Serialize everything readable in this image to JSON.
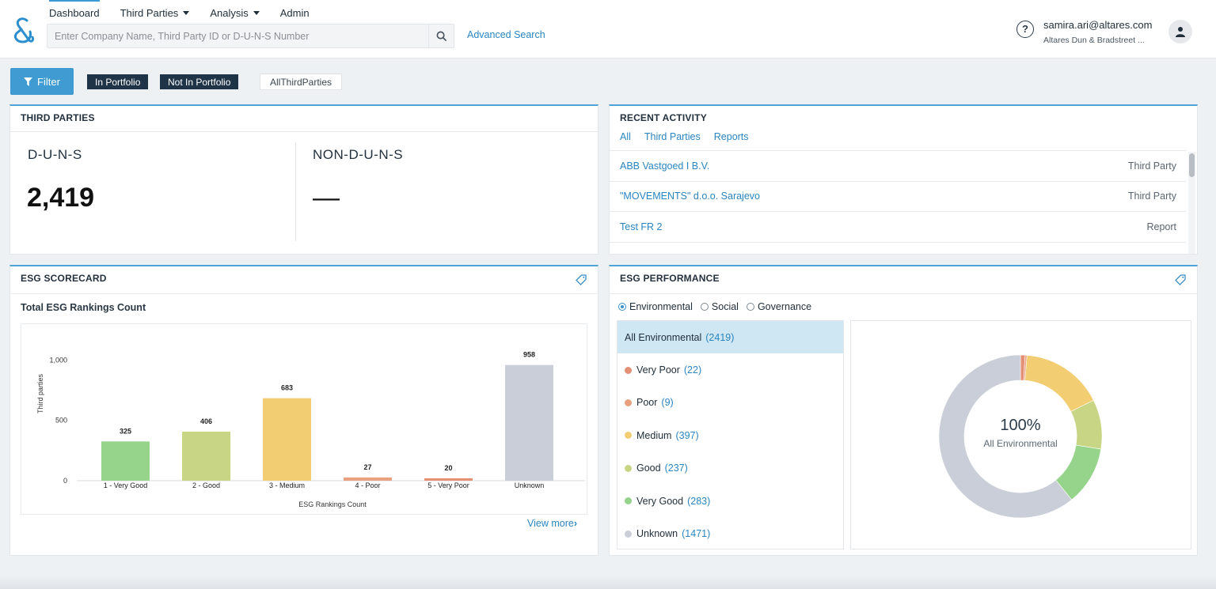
{
  "header": {
    "nav": [
      {
        "label": "Dashboard",
        "active": true,
        "dropdown": false
      },
      {
        "label": "Third Parties",
        "active": false,
        "dropdown": true
      },
      {
        "label": "Analysis",
        "active": false,
        "dropdown": true
      },
      {
        "label": "Admin",
        "active": false,
        "dropdown": false
      }
    ],
    "search_placeholder": "Enter Company Name, Third Party ID or D-U-N-S Number",
    "search_value": "",
    "advanced_search": "Advanced Search",
    "user_email": "samira.ari@altares.com",
    "user_org": "Altares Dun & Bradstreet ..."
  },
  "filters": {
    "filter_label": "Filter",
    "chips": [
      "In Portfolio",
      "Not In Portfolio",
      "AllThirdParties"
    ]
  },
  "third_parties": {
    "title": "THIRD PARTIES",
    "duns_label": "D-U-N-S",
    "duns_value": "2,419",
    "non_duns_label": "NON-D-U-N-S",
    "non_duns_value": "—"
  },
  "recent_activity": {
    "title": "RECENT ACTIVITY",
    "tabs": [
      "All",
      "Third Parties",
      "Reports"
    ],
    "rows": [
      {
        "name": "ABB Vastgoed I B.V.",
        "type": "Third Party"
      },
      {
        "name": "\"MOVEMENTS\" d.o.o. Sarajevo",
        "type": "Third Party"
      },
      {
        "name": "Test FR 2",
        "type": "Report"
      }
    ]
  },
  "esg_scorecard": {
    "title": "ESG SCORECARD",
    "subtitle": "Total ESG Rankings Count",
    "view_more": "View more"
  },
  "esg_performance": {
    "title": "ESG PERFORMANCE",
    "radios": [
      {
        "label": "Environmental",
        "checked": true
      },
      {
        "label": "Social",
        "checked": false
      },
      {
        "label": "Governance",
        "checked": false
      }
    ],
    "categories": [
      {
        "label": "All Environmental",
        "count": "(2419)",
        "color": "",
        "selected": true
      },
      {
        "label": "Very Poor",
        "count": "(22)",
        "color": "#e58f75",
        "selected": false
      },
      {
        "label": "Poor",
        "count": "(9)",
        "color": "#e8a07f",
        "selected": false
      },
      {
        "label": "Medium",
        "count": "(397)",
        "color": "#f2cd72",
        "selected": false
      },
      {
        "label": "Good",
        "count": "(237)",
        "color": "#c8d584",
        "selected": false
      },
      {
        "label": "Very Good",
        "count": "(283)",
        "color": "#95d48a",
        "selected": false
      },
      {
        "label": "Unknown",
        "count": "(1471)",
        "color": "#c9ced8",
        "selected": false
      }
    ],
    "donut_center_value": "100%",
    "donut_center_label": "All Environmental"
  },
  "chart_data": [
    {
      "type": "bar",
      "title": "",
      "xlabel": "ESG Rankings Count",
      "ylabel": "Third parties",
      "categories": [
        "1 - Very Good",
        "2 - Good",
        "3 - Medium",
        "4 - Poor",
        "5 - Very Poor",
        "Unknown"
      ],
      "values": [
        325,
        406,
        683,
        27,
        20,
        958
      ],
      "colors": [
        "#95d48a",
        "#c8d584",
        "#f2cd72",
        "#e8a07f",
        "#e58f75",
        "#c9ced8"
      ],
      "yticks": [
        0,
        500,
        1000
      ],
      "ytick_labels": [
        "0",
        "500",
        "1,000"
      ],
      "ylim": [
        0,
        1100
      ],
      "grid": false,
      "data_labels": true
    },
    {
      "type": "pie",
      "donut": true,
      "title": "",
      "categories": [
        "Very Poor",
        "Poor",
        "Medium",
        "Good",
        "Very Good",
        "Unknown"
      ],
      "values": [
        22,
        9,
        397,
        237,
        283,
        1471
      ],
      "colors": [
        "#e58f75",
        "#e8a07f",
        "#f2cd72",
        "#c8d584",
        "#95d48a",
        "#c9ced8"
      ]
    }
  ]
}
